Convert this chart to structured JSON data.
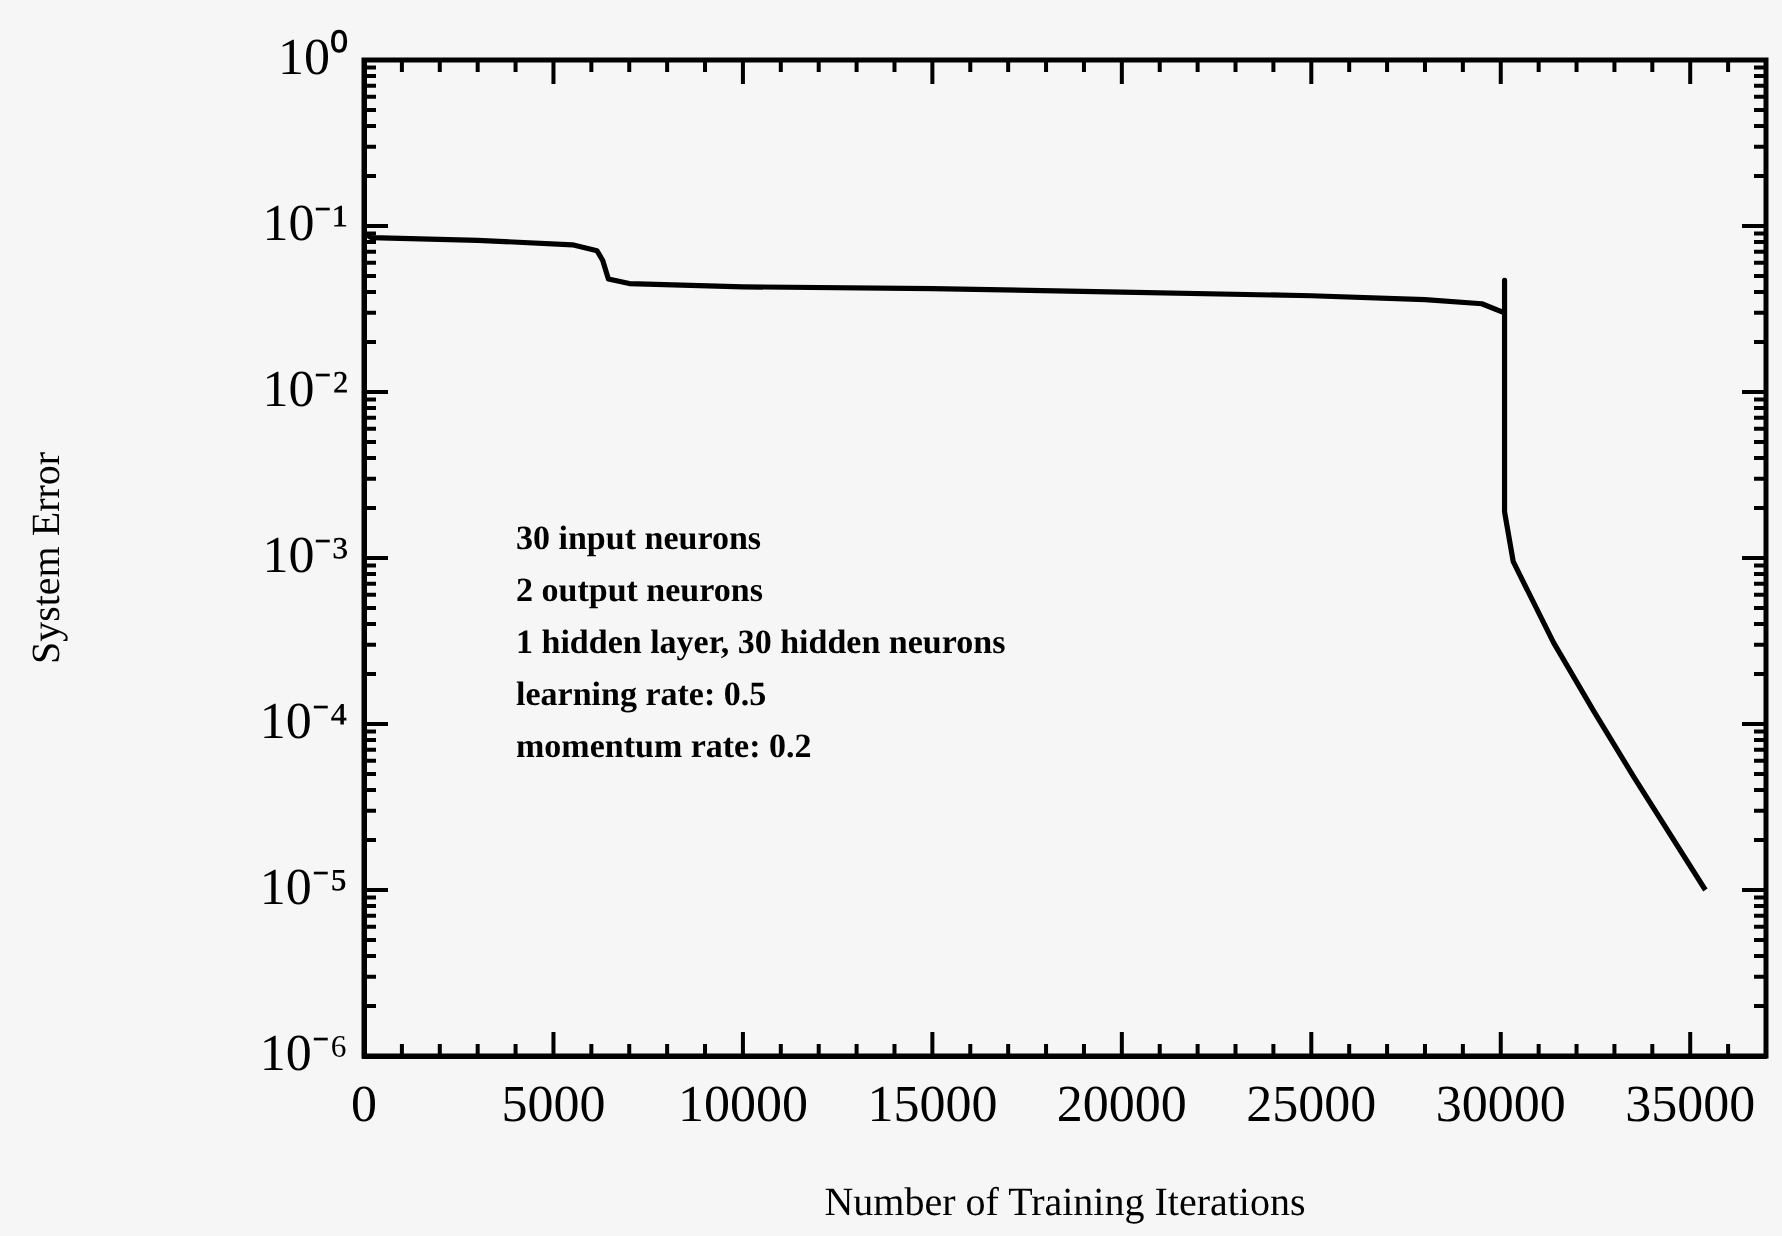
{
  "chart_data": {
    "type": "line",
    "xlabel": "Number of Training Iterations",
    "ylabel": "System Error",
    "log": "y",
    "color": "#000000",
    "x": [
      0,
      200,
      3000,
      5500,
      6150,
      6300,
      6450,
      7000,
      10000,
      15000,
      20000,
      25000,
      28000,
      29500,
      30100,
      30100,
      30100,
      30330,
      31390,
      32450,
      33510,
      35400
    ],
    "values": [
      0.09,
      0.085,
      0.082,
      0.077,
      0.071,
      0.062,
      0.048,
      0.045,
      0.043,
      0.042,
      0.04,
      0.038,
      0.036,
      0.034,
      0.03,
      0.047,
      0.0019,
      0.00095,
      0.00031,
      0.00012,
      4.8e-05,
      1e-05
    ],
    "xlim": [
      0,
      37000
    ],
    "xticks": [
      0,
      {
        "value": 1000,
        "label": null
      },
      {
        "value": 2000,
        "label": null
      },
      {
        "value": 3000,
        "label": null
      },
      {
        "value": 4000,
        "label": null
      },
      5000,
      {
        "value": 6000,
        "label": null
      },
      {
        "value": 7000,
        "label": null
      },
      {
        "value": 8000,
        "label": null
      },
      {
        "value": 9000,
        "label": null
      },
      10000,
      {
        "value": 11000,
        "label": null
      },
      {
        "value": 12000,
        "label": null
      },
      {
        "value": 13000,
        "label": null
      },
      {
        "value": 14000,
        "label": null
      },
      15000,
      {
        "value": 16000,
        "label": null
      },
      {
        "value": 17000,
        "label": null
      },
      {
        "value": 18000,
        "label": null
      },
      {
        "value": 19000,
        "label": null
      },
      20000,
      {
        "value": 21000,
        "label": null
      },
      {
        "value": 22000,
        "label": null
      },
      {
        "value": 23000,
        "label": null
      },
      {
        "value": 24000,
        "label": null
      },
      25000,
      {
        "value": 26000,
        "label": null
      },
      {
        "value": 27000,
        "label": null
      },
      {
        "value": 28000,
        "label": null
      },
      {
        "value": 29000,
        "label": null
      },
      30000,
      {
        "value": 31000,
        "label": null
      },
      {
        "value": 32000,
        "label": null
      },
      {
        "value": 33000,
        "label": null
      },
      {
        "value": 34000,
        "label": null
      },
      35000,
      {
        "value": 36000,
        "label": null
      }
    ],
    "ylim": [
      1e-06,
      1
    ],
    "yticks": [
      {
        "value": 1e-06,
        "label": "10⁻⁶"
      },
      {
        "value": 2e-06,
        "label": null
      },
      {
        "value": 3e-06,
        "label": null
      },
      {
        "value": 4e-06,
        "label": null
      },
      {
        "value": 5e-06,
        "label": null
      },
      {
        "value": 6e-06,
        "label": null
      },
      {
        "value": 7e-06,
        "label": null
      },
      {
        "value": 8e-06,
        "label": null
      },
      {
        "value": 9e-06,
        "label": null
      },
      {
        "value": 1e-05,
        "label": "10⁻⁵"
      },
      {
        "value": 2e-05,
        "label": null
      },
      {
        "value": 3e-05,
        "label": null
      },
      {
        "value": 4e-05,
        "label": null
      },
      {
        "value": 5e-05,
        "label": null
      },
      {
        "value": 6e-05,
        "label": null
      },
      {
        "value": 7e-05,
        "label": null
      },
      {
        "value": 8e-05,
        "label": null
      },
      {
        "value": 9e-05,
        "label": null
      },
      {
        "value": 0.0001,
        "label": "10⁻⁴"
      },
      {
        "value": 0.0002,
        "label": null
      },
      {
        "value": 0.0003,
        "label": null
      },
      {
        "value": 0.0004,
        "label": null
      },
      {
        "value": 0.0005,
        "label": null
      },
      {
        "value": 0.0006,
        "label": null
      },
      {
        "value": 0.0007,
        "label": null
      },
      {
        "value": 0.0008,
        "label": null
      },
      {
        "value": 0.0009,
        "label": null
      },
      {
        "value": 0.001,
        "label": "10⁻³"
      },
      {
        "value": 0.002,
        "label": null
      },
      {
        "value": 0.003,
        "label": null
      },
      {
        "value": 0.004,
        "label": null
      },
      {
        "value": 0.005,
        "label": null
      },
      {
        "value": 0.006,
        "label": null
      },
      {
        "value": 0.007,
        "label": null
      },
      {
        "value": 0.008,
        "label": null
      },
      {
        "value": 0.009,
        "label": null
      },
      {
        "value": 0.01,
        "label": "10⁻²"
      },
      {
        "value": 0.02,
        "label": null
      },
      {
        "value": 0.03,
        "label": null
      },
      {
        "value": 0.04,
        "label": null
      },
      {
        "value": 0.05,
        "label": null
      },
      {
        "value": 0.06,
        "label": null
      },
      {
        "value": 0.07,
        "label": null
      },
      {
        "value": 0.08,
        "label": null
      },
      {
        "value": 0.09,
        "label": null
      },
      {
        "value": 0.1,
        "label": "10⁻¹"
      },
      {
        "value": 0.2,
        "label": null
      },
      {
        "value": 0.3,
        "label": null
      },
      {
        "value": 0.4,
        "label": null
      },
      {
        "value": 0.5,
        "label": null
      },
      {
        "value": 0.6,
        "label": null
      },
      {
        "value": 0.7,
        "label": null
      },
      {
        "value": 0.8,
        "label": null
      },
      {
        "value": 0.9,
        "label": null
      },
      {
        "value": 1,
        "label": "10⁰"
      }
    ],
    "annotations": [
      "30 input neurons",
      "2 output neurons",
      "1 hidden layer, 30 hidden neurons",
      "learning rate: 0.5",
      "momentum rate: 0.2"
    ]
  }
}
